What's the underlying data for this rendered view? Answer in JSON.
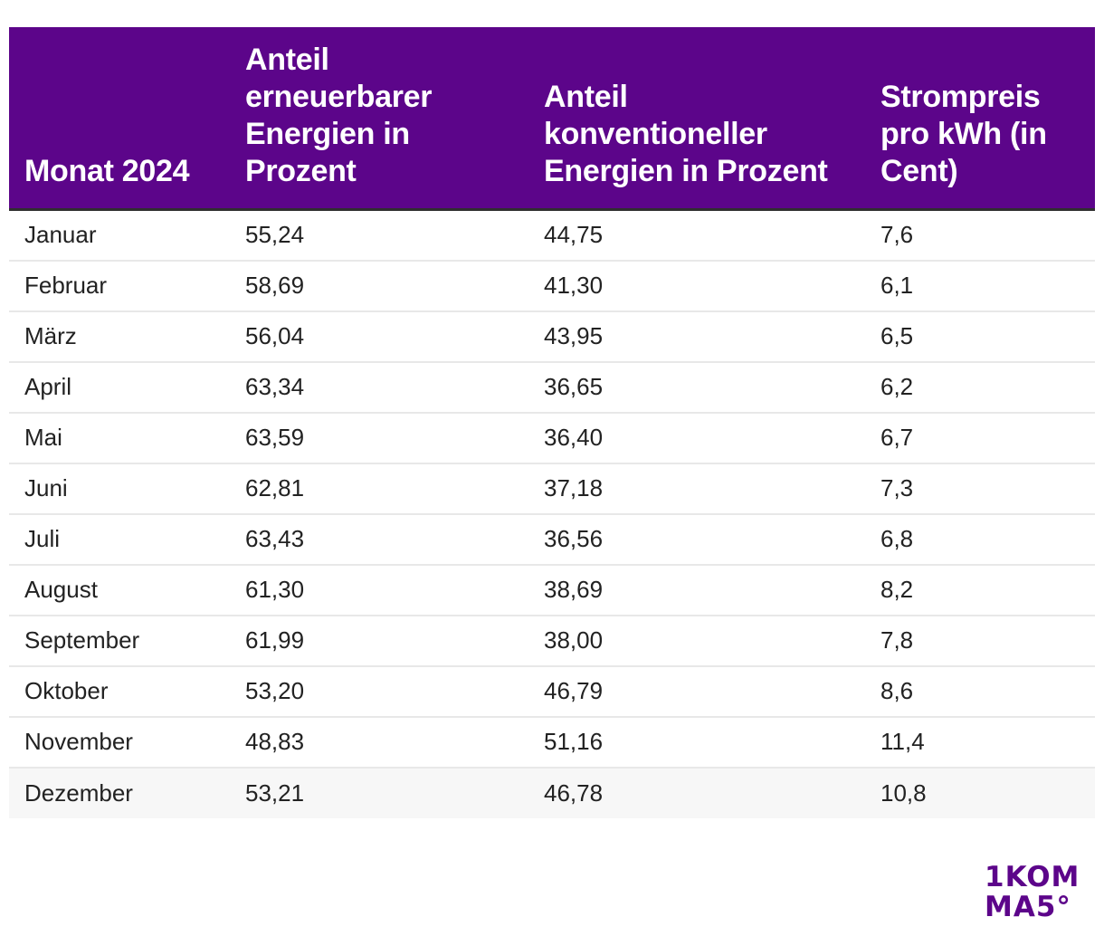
{
  "chart_data": {
    "type": "table",
    "columns": [
      "Monat 2024",
      "Anteil erneuerbarer Energien in Prozent",
      "Anteil konventioneller Energien in Prozent",
      "Strompreis pro kWh (in Cent)"
    ],
    "rows": [
      [
        "Januar",
        "55,24",
        "44,75",
        "7,6"
      ],
      [
        "Februar",
        "58,69",
        "41,30",
        "6,1"
      ],
      [
        "März",
        "56,04",
        "43,95",
        "6,5"
      ],
      [
        "April",
        "63,34",
        "36,65",
        "6,2"
      ],
      [
        "Mai",
        "63,59",
        "36,40",
        "6,7"
      ],
      [
        "Juni",
        "62,81",
        "37,18",
        "7,3"
      ],
      [
        "Juli",
        "63,43",
        "36,56",
        "6,8"
      ],
      [
        "August",
        "61,30",
        "38,69",
        "8,2"
      ],
      [
        "September",
        "61,99",
        "38,00",
        "7,8"
      ],
      [
        "Oktober",
        "53,20",
        "46,79",
        "8,6"
      ],
      [
        "November",
        "48,83",
        "51,16",
        "11,4"
      ],
      [
        "Dezember",
        "53,21",
        "46,78",
        "10,8"
      ]
    ]
  },
  "logo": {
    "line1": "1KOM",
    "line2": "MA5°",
    "color": "#5c058a"
  },
  "colors": {
    "header_bg": "#5c058a",
    "header_text": "#ffffff",
    "row_divider": "#e8e8e8"
  }
}
